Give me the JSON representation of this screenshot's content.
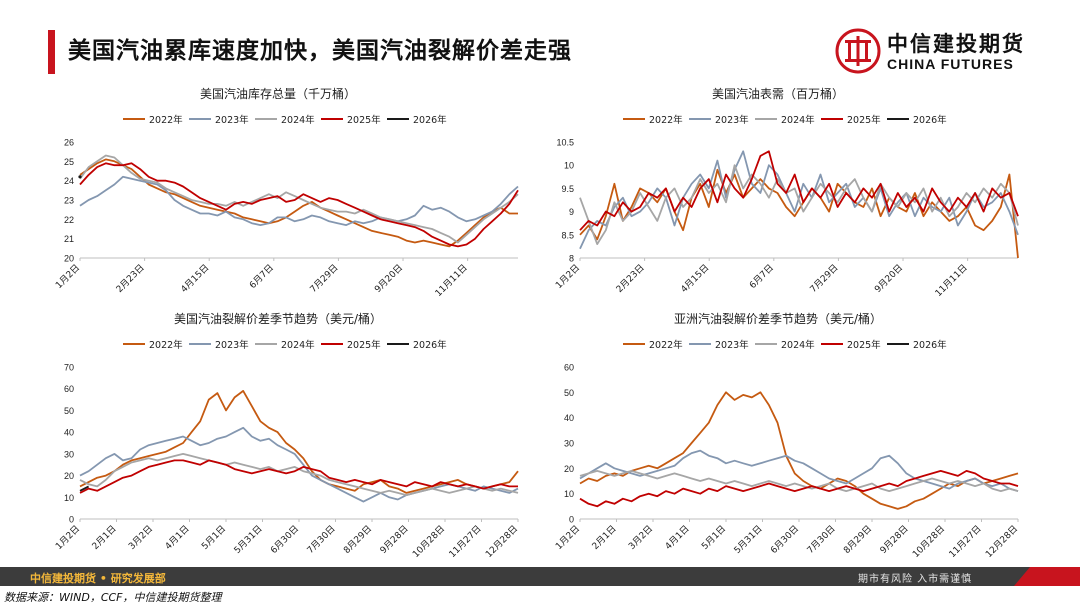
{
  "page": {
    "title": "美国汽油累库速度加快，美国汽油裂解价差走强",
    "logo_cn": "中信建投期货",
    "logo_en": "CHINA FUTURES",
    "footer_dept": "中信建投期货 • 研究发展部",
    "footer_risk": "期市有风险   入市需谨慎",
    "source": "数据来源：WIND，CCF，中信建投期货整理",
    "colors": {
      "accent": "#c8141e",
      "footer": "#3c3c3c",
      "footer_text": "#f3b73a"
    }
  },
  "legend": [
    {
      "name": "2022年",
      "color": "#c55a11"
    },
    {
      "name": "2023年",
      "color": "#8497b0"
    },
    {
      "name": "2024年",
      "color": "#a6a6a6"
    },
    {
      "name": "2025年",
      "color": "#c00000"
    },
    {
      "name": "2026年",
      "color": "#1a1a1a"
    }
  ],
  "chart_data": [
    {
      "type": "line",
      "title": "美国汽油库存总量（千万桶）",
      "x_ticks": [
        "1月2日",
        "2月23日",
        "4月15日",
        "6月7日",
        "7月29日",
        "9月20日",
        "11月11日"
      ],
      "ylim": [
        20,
        26
      ],
      "yticks": [
        20,
        21,
        22,
        23,
        24,
        25,
        26
      ],
      "n_weeks": 52,
      "series": [
        {
          "name": "2022年",
          "values": [
            24.3,
            24.6,
            24.9,
            25.1,
            25.0,
            24.8,
            24.6,
            24.2,
            23.8,
            23.6,
            23.4,
            23.3,
            23.1,
            22.9,
            22.7,
            22.6,
            22.5,
            22.4,
            22.3,
            22.1,
            22.0,
            21.9,
            21.8,
            21.9,
            22.1,
            22.4,
            22.7,
            22.9,
            22.6,
            22.4,
            22.2,
            22.0,
            21.8,
            21.6,
            21.4,
            21.3,
            21.2,
            21.1,
            20.9,
            20.8,
            20.9,
            20.8,
            20.7,
            20.6,
            20.9,
            21.3,
            21.7,
            22.1,
            22.4,
            22.6,
            22.3,
            22.3
          ]
        },
        {
          "name": "2023年",
          "values": [
            22.7,
            23.0,
            23.2,
            23.5,
            23.8,
            24.2,
            24.1,
            24.0,
            23.9,
            23.8,
            23.5,
            23.0,
            22.7,
            22.5,
            22.3,
            22.3,
            22.2,
            22.4,
            22.1,
            22.0,
            21.8,
            21.7,
            21.8,
            22.1,
            22.1,
            21.9,
            22.0,
            22.2,
            22.1,
            21.9,
            21.8,
            21.7,
            21.9,
            21.8,
            21.9,
            22.1,
            22.0,
            21.9,
            22.0,
            22.2,
            22.7,
            22.5,
            22.6,
            22.4,
            22.1,
            21.9,
            22.0,
            22.2,
            22.4,
            22.8,
            23.3,
            23.7
          ]
        },
        {
          "name": "2024年",
          "values": [
            24.1,
            24.7,
            25.0,
            25.3,
            25.2,
            24.8,
            24.4,
            24.1,
            24.0,
            23.9,
            23.6,
            23.4,
            23.2,
            23.0,
            22.9,
            22.8,
            22.8,
            22.7,
            22.9,
            22.7,
            22.9,
            23.1,
            23.3,
            23.1,
            23.4,
            23.2,
            23.0,
            22.8,
            22.6,
            22.5,
            22.4,
            22.4,
            22.3,
            22.5,
            22.3,
            22.1,
            22.0,
            21.9,
            21.8,
            21.7,
            21.6,
            21.5,
            21.3,
            21.1,
            20.8,
            21.2,
            21.6,
            22.0,
            22.3,
            22.6,
            22.9,
            23.3
          ]
        },
        {
          "name": "2025年",
          "values": [
            23.8,
            24.3,
            24.7,
            24.9,
            24.8,
            24.8,
            24.9,
            24.6,
            24.2,
            24.0,
            24.0,
            23.9,
            23.7,
            23.4,
            23.1,
            22.9,
            22.7,
            22.5,
            22.8,
            22.9,
            22.8,
            23.0,
            23.1,
            23.2,
            22.9,
            23.0,
            23.3,
            23.1,
            22.9,
            23.1,
            23.0,
            22.8,
            22.6,
            22.4,
            22.2,
            22.0,
            21.9,
            21.8,
            21.7,
            21.6,
            21.4,
            21.1,
            20.9,
            20.7,
            20.6,
            20.7,
            21.0,
            21.5,
            21.9,
            22.3,
            22.8,
            23.5
          ]
        },
        {
          "name": "2026年",
          "values": [
            24.2
          ]
        }
      ]
    },
    {
      "type": "line",
      "title": "美国汽油表需（百万桶）",
      "x_ticks": [
        "1月2日",
        "2月23日",
        "4月15日",
        "6月7日",
        "7月29日",
        "9月20日",
        "11月11日"
      ],
      "ylim": [
        8,
        10.5
      ],
      "yticks": [
        8,
        8.5,
        9,
        9.5,
        10,
        10.5
      ],
      "n_weeks": 52,
      "series": [
        {
          "name": "2022年",
          "values": [
            8.5,
            8.7,
            8.4,
            8.9,
            9.6,
            8.8,
            9.1,
            9.5,
            9.4,
            9.2,
            9.5,
            9.0,
            8.6,
            9.3,
            9.6,
            9.1,
            9.9,
            9.4,
            9.8,
            9.3,
            9.5,
            9.7,
            9.5,
            9.4,
            9.1,
            8.9,
            9.2,
            9.5,
            9.3,
            9.0,
            9.6,
            9.4,
            9.2,
            9.1,
            9.5,
            8.9,
            9.3,
            9.1,
            9.0,
            9.4,
            8.9,
            9.2,
            9.0,
            8.8,
            8.9,
            9.1,
            8.7,
            8.6,
            8.8,
            9.1,
            9.8,
            8.0
          ]
        },
        {
          "name": "2023年",
          "values": [
            8.2,
            8.6,
            8.8,
            8.7,
            9.1,
            9.3,
            8.9,
            9.0,
            9.2,
            9.5,
            9.3,
            8.7,
            9.3,
            9.6,
            9.8,
            9.5,
            10.1,
            9.3,
            9.9,
            10.3,
            9.6,
            9.4,
            10.0,
            9.8,
            9.4,
            9.0,
            9.6,
            9.3,
            9.8,
            9.2,
            9.4,
            9.6,
            9.1,
            9.3,
            9.0,
            9.5,
            8.9,
            9.2,
            9.4,
            8.9,
            9.3,
            9.1,
            9.0,
            9.3,
            8.7,
            9.0,
            9.4,
            9.1,
            9.2,
            9.4,
            9.0,
            8.5
          ]
        },
        {
          "name": "2024年",
          "values": [
            9.3,
            8.8,
            8.3,
            8.6,
            9.2,
            8.8,
            9.0,
            9.4,
            9.1,
            8.8,
            9.3,
            9.5,
            9.1,
            9.3,
            9.7,
            9.4,
            9.6,
            9.2,
            10.0,
            9.5,
            9.8,
            9.6,
            9.3,
            9.7,
            9.4,
            9.5,
            9.0,
            9.3,
            9.6,
            9.4,
            9.2,
            9.5,
            9.7,
            9.3,
            9.0,
            9.6,
            9.3,
            9.1,
            9.4,
            9.2,
            9.5,
            9.0,
            9.3,
            8.9,
            9.1,
            9.4,
            9.2,
            9.5,
            9.3,
            9.6,
            9.4,
            8.7
          ]
        },
        {
          "name": "2025年",
          "values": [
            8.6,
            8.8,
            8.7,
            9.0,
            8.9,
            9.2,
            9.0,
            9.1,
            9.4,
            9.3,
            9.5,
            9.0,
            9.3,
            9.1,
            9.5,
            9.7,
            9.2,
            9.8,
            9.5,
            9.3,
            9.7,
            10.2,
            10.3,
            9.6,
            9.4,
            9.8,
            9.2,
            9.5,
            9.3,
            9.6,
            9.1,
            9.4,
            9.2,
            9.5,
            9.3,
            9.6,
            9.0,
            9.4,
            9.1,
            9.3,
            9.0,
            9.5,
            9.2,
            9.0,
            9.3,
            9.1,
            9.4,
            9.0,
            9.5,
            9.3,
            9.4,
            8.9
          ]
        },
        {
          "name": "2026年",
          "values": []
        }
      ]
    },
    {
      "type": "line",
      "title": "美国汽油裂解价差季节趋势（美元/桶）",
      "x_ticks": [
        "1月2日",
        "2月1日",
        "3月2日",
        "4月1日",
        "5月1日",
        "5月31日",
        "6月30日",
        "7月30日",
        "8月29日",
        "9月28日",
        "10月28日",
        "11月27日",
        "12月28日"
      ],
      "ylim": [
        0,
        70
      ],
      "yticks": [
        0,
        10,
        20,
        30,
        40,
        50,
        60,
        70
      ],
      "n_weeks": 52,
      "series": [
        {
          "name": "2022年",
          "values": [
            15,
            17,
            19,
            20,
            22,
            25,
            27,
            28,
            29,
            30,
            31,
            33,
            35,
            40,
            45,
            55,
            58,
            50,
            56,
            59,
            52,
            45,
            42,
            40,
            35,
            32,
            28,
            22,
            18,
            16,
            15,
            14,
            13,
            16,
            17,
            18,
            15,
            14,
            12,
            13,
            14,
            15,
            16,
            17,
            18,
            16,
            15,
            14,
            15,
            16,
            17,
            22
          ]
        },
        {
          "name": "2023年",
          "values": [
            20,
            22,
            25,
            28,
            30,
            27,
            28,
            32,
            34,
            35,
            36,
            37,
            38,
            36,
            34,
            35,
            37,
            38,
            40,
            42,
            38,
            36,
            37,
            34,
            32,
            30,
            25,
            20,
            18,
            16,
            14,
            12,
            10,
            8,
            10,
            12,
            10,
            9,
            11,
            12,
            13,
            14,
            15,
            16,
            15,
            14,
            13,
            15,
            14,
            13,
            12,
            14
          ]
        },
        {
          "name": "2024年",
          "values": [
            18,
            16,
            15,
            18,
            22,
            24,
            26,
            27,
            28,
            27,
            28,
            29,
            30,
            29,
            28,
            27,
            26,
            25,
            26,
            25,
            24,
            23,
            24,
            22,
            23,
            24,
            22,
            21,
            20,
            18,
            17,
            16,
            15,
            14,
            13,
            12,
            13,
            12,
            11,
            12,
            13,
            14,
            13,
            12,
            13,
            14,
            15,
            14,
            13,
            14,
            13,
            12
          ]
        },
        {
          "name": "2025年",
          "values": [
            12,
            14,
            13,
            15,
            17,
            19,
            20,
            22,
            24,
            25,
            26,
            27,
            27,
            26,
            25,
            27,
            26,
            25,
            23,
            22,
            21,
            22,
            23,
            22,
            21,
            22,
            24,
            23,
            22,
            19,
            18,
            17,
            18,
            17,
            16,
            18,
            17,
            16,
            15,
            17,
            16,
            15,
            17,
            16,
            15,
            16,
            15,
            14,
            15,
            16,
            15,
            15
          ]
        },
        {
          "name": "2026年",
          "values": [
            13,
            15
          ]
        }
      ]
    },
    {
      "type": "line",
      "title": "亚洲汽油裂解价差季节趋势（美元/桶）",
      "x_ticks": [
        "1月2日",
        "2月1日",
        "3月2日",
        "4月1日",
        "5月1日",
        "5月31日",
        "6月30日",
        "7月30日",
        "8月29日",
        "9月28日",
        "10月28日",
        "11月27日",
        "12月28日"
      ],
      "ylim": [
        0,
        60
      ],
      "yticks": [
        0,
        10,
        20,
        30,
        40,
        50,
        60
      ],
      "n_weeks": 52,
      "series": [
        {
          "name": "2022年",
          "values": [
            14,
            16,
            15,
            17,
            18,
            17,
            19,
            20,
            21,
            20,
            22,
            24,
            26,
            30,
            34,
            38,
            45,
            50,
            47,
            49,
            48,
            50,
            45,
            38,
            25,
            18,
            15,
            13,
            12,
            14,
            16,
            15,
            13,
            10,
            8,
            6,
            5,
            4,
            5,
            7,
            8,
            10,
            12,
            14,
            13,
            15,
            16,
            14,
            15,
            16,
            17,
            18
          ]
        },
        {
          "name": "2023年",
          "values": [
            16,
            18,
            20,
            22,
            20,
            19,
            18,
            17,
            18,
            19,
            20,
            21,
            24,
            26,
            27,
            25,
            24,
            22,
            23,
            22,
            21,
            22,
            23,
            24,
            25,
            23,
            22,
            20,
            18,
            16,
            15,
            14,
            16,
            18,
            20,
            24,
            25,
            22,
            18,
            16,
            15,
            14,
            13,
            12,
            14,
            15,
            16,
            14,
            13,
            14,
            12,
            11
          ]
        },
        {
          "name": "2024年",
          "values": [
            17,
            18,
            19,
            18,
            17,
            18,
            19,
            18,
            17,
            16,
            17,
            18,
            17,
            16,
            15,
            16,
            15,
            14,
            15,
            14,
            13,
            14,
            15,
            14,
            13,
            14,
            13,
            12,
            13,
            14,
            12,
            11,
            12,
            13,
            14,
            12,
            11,
            12,
            13,
            14,
            15,
            16,
            15,
            14,
            15,
            14,
            13,
            14,
            12,
            11,
            12,
            11
          ]
        },
        {
          "name": "2025年",
          "values": [
            8,
            6,
            5,
            7,
            6,
            8,
            7,
            9,
            10,
            9,
            11,
            10,
            12,
            11,
            10,
            12,
            11,
            13,
            12,
            11,
            12,
            13,
            14,
            13,
            12,
            11,
            12,
            13,
            12,
            11,
            12,
            13,
            12,
            11,
            12,
            13,
            14,
            13,
            15,
            16,
            17,
            18,
            19,
            18,
            17,
            19,
            18,
            16,
            15,
            14,
            14,
            13
          ]
        },
        {
          "name": "2026年",
          "values": []
        }
      ]
    }
  ]
}
